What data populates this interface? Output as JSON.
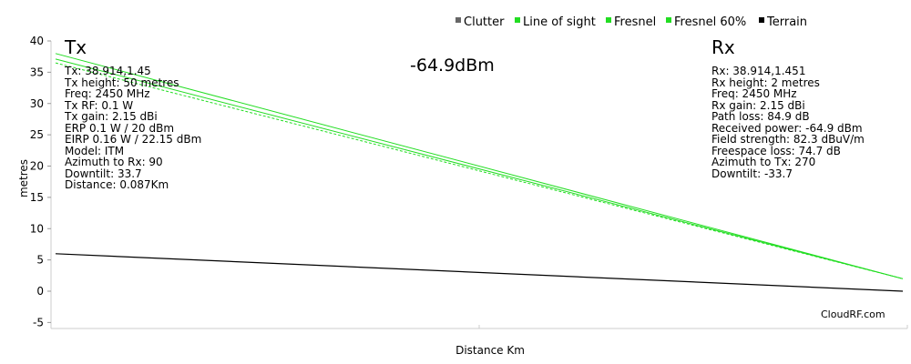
{
  "tx": {
    "title": "Tx",
    "lines": [
      "Tx: 38.914,1.45",
      "Tx height: 50 metres",
      "Freq: 2450 MHz",
      "Tx RF: 0.1 W",
      "Tx gain: 2.15 dBi",
      "ERP 0.1 W / 20 dBm",
      "EIRP 0.16 W / 22.15 dBm",
      "Model: ITM",
      "Azimuth to Rx: 90",
      "Downtilt: 33.7",
      "Distance: 0.087Km"
    ]
  },
  "rx": {
    "title": "Rx",
    "lines": [
      "Rx: 38.914,1.451",
      "Rx height: 2 metres",
      "Freq: 2450 MHz",
      "Rx gain: 2.15 dBi",
      "Path loss: 84.9 dB",
      "Received power: -64.9 dBm",
      "Field strength: 82.3 dBuV/m",
      "Freespace loss: 74.7 dB",
      "Azimuth to Tx: 270",
      "Downtilt: -33.7"
    ]
  },
  "received_power_label": "-64.9dBm",
  "credit": "CloudRF.com",
  "chart_data": {
    "type": "line",
    "xlabel": "Distance Km",
    "ylabel": "metres",
    "xlim": [
      0,
      0.087
    ],
    "ylim": [
      -6,
      40
    ],
    "yticks": [
      -5,
      0,
      5,
      10,
      15,
      20,
      25,
      30,
      35,
      40
    ],
    "ytick_labels": [
      "-5",
      "0",
      "5",
      "10",
      "15",
      "20",
      "25",
      "30",
      "35",
      "40"
    ],
    "legend_position": "top-right",
    "legend": [
      {
        "name": "Clutter",
        "color": "#666666"
      },
      {
        "name": "Line of sight",
        "color": "#22dd22"
      },
      {
        "name": "Fresnel",
        "color": "#22dd22"
      },
      {
        "name": "Fresnel 60%",
        "color": "#22dd22"
      },
      {
        "name": "Terrain",
        "color": "#000000"
      }
    ],
    "series": [
      {
        "name": "Line of sight",
        "color": "#22dd22",
        "style": "solid",
        "x": [
          0,
          0.087
        ],
        "y": [
          38,
          2
        ]
      },
      {
        "name": "Fresnel",
        "color": "#22dd22",
        "style": "solid",
        "x": [
          0,
          0.087
        ],
        "y": [
          37.1,
          2
        ]
      },
      {
        "name": "Fresnel 60%",
        "color": "#22dd22",
        "style": "dashed",
        "x": [
          0,
          0.087
        ],
        "y": [
          36.5,
          2
        ]
      },
      {
        "name": "Terrain",
        "color": "#000000",
        "style": "solid",
        "x": [
          0,
          0.087
        ],
        "y": [
          6,
          0
        ]
      }
    ]
  }
}
